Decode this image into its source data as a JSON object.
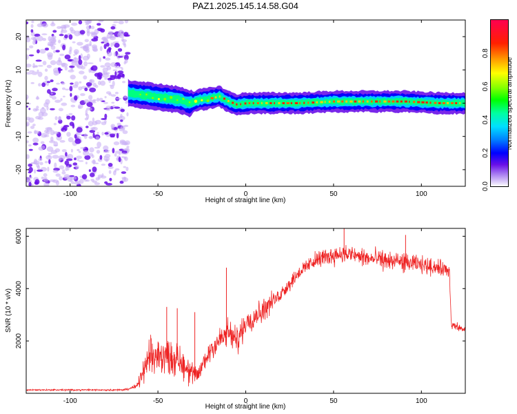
{
  "title": "PAZ1.2025.145.14.58.G04",
  "colors": {
    "snr_line": "#ee2222",
    "spectrum_purple": "#6a10e8",
    "spectrum_light": "#c9b0f5"
  },
  "chart_data": [
    {
      "type": "heatmap",
      "xlabel": "Height of straight line (km)",
      "ylabel": "Frequency (Hz)",
      "xlim": [
        -125,
        125
      ],
      "ylim": [
        -25,
        25
      ],
      "xticks": [
        -100,
        -50,
        0,
        50,
        100
      ],
      "yticks": [
        -20,
        -10,
        0,
        10,
        20
      ],
      "noise_region_x": [
        -125,
        -67
      ],
      "signal_center_freq": [
        {
          "x": -67,
          "y": 3
        },
        {
          "x": -60,
          "y": 2.5
        },
        {
          "x": -52,
          "y": 2
        },
        {
          "x": -45,
          "y": 1.5
        },
        {
          "x": -38,
          "y": 1
        },
        {
          "x": -32,
          "y": 0
        },
        {
          "x": -26,
          "y": 1
        },
        {
          "x": -20,
          "y": 1.5
        },
        {
          "x": -15,
          "y": 2
        },
        {
          "x": -10,
          "y": 0.5
        },
        {
          "x": -5,
          "y": -0.5
        },
        {
          "x": 0,
          "y": 0
        },
        {
          "x": 10,
          "y": 0
        },
        {
          "x": 30,
          "y": 0
        },
        {
          "x": 50,
          "y": 0.5
        },
        {
          "x": 70,
          "y": 0.5
        },
        {
          "x": 90,
          "y": 0.5
        },
        {
          "x": 110,
          "y": 0
        },
        {
          "x": 125,
          "y": 0
        }
      ],
      "colorbar": {
        "label": "Normalized spectral amplitude",
        "range": [
          0,
          1
        ],
        "ticks": [
          "0.0",
          "0.2",
          "0.4",
          "0.6",
          "0.8"
        ]
      }
    },
    {
      "type": "line",
      "xlabel": "Height of straight line (km)",
      "ylabel": "SNR (10 * v/v)",
      "xlim": [
        -125,
        125
      ],
      "ylim": [
        0,
        6300
      ],
      "xticks": [
        -100,
        -50,
        0,
        50,
        100
      ],
      "yticks": [
        2000,
        4000,
        6000
      ],
      "envelope": [
        {
          "x": -125,
          "mean": 130,
          "spread": 40
        },
        {
          "x": -70,
          "mean": 130,
          "spread": 40
        },
        {
          "x": -62,
          "mean": 250,
          "spread": 150
        },
        {
          "x": -55,
          "mean": 1300,
          "spread": 1000
        },
        {
          "x": -45,
          "mean": 1500,
          "spread": 900
        },
        {
          "x": -35,
          "mean": 1100,
          "spread": 900
        },
        {
          "x": -28,
          "mean": 600,
          "spread": 500
        },
        {
          "x": -20,
          "mean": 1700,
          "spread": 700
        },
        {
          "x": -10,
          "mean": 2300,
          "spread": 800
        },
        {
          "x": -5,
          "mean": 2000,
          "spread": 700
        },
        {
          "x": 0,
          "mean": 2700,
          "spread": 700
        },
        {
          "x": 10,
          "mean": 3200,
          "spread": 600
        },
        {
          "x": 20,
          "mean": 3800,
          "spread": 400
        },
        {
          "x": 30,
          "mean": 4600,
          "spread": 400
        },
        {
          "x": 40,
          "mean": 5100,
          "spread": 450
        },
        {
          "x": 55,
          "mean": 5350,
          "spread": 500
        },
        {
          "x": 70,
          "mean": 5150,
          "spread": 500
        },
        {
          "x": 90,
          "mean": 5000,
          "spread": 500
        },
        {
          "x": 110,
          "mean": 4800,
          "spread": 400
        },
        {
          "x": 116,
          "mean": 4700,
          "spread": 400
        },
        {
          "x": 117,
          "mean": 2600,
          "spread": 250
        },
        {
          "x": 125,
          "mean": 2400,
          "spread": 200
        }
      ],
      "spikes": [
        {
          "x": -45,
          "y": 3300
        },
        {
          "x": -39,
          "y": 3250
        },
        {
          "x": -29,
          "y": 3100
        },
        {
          "x": -11,
          "y": 4800
        },
        {
          "x": 56,
          "y": 6300
        },
        {
          "x": 91,
          "y": 6050
        }
      ]
    }
  ]
}
